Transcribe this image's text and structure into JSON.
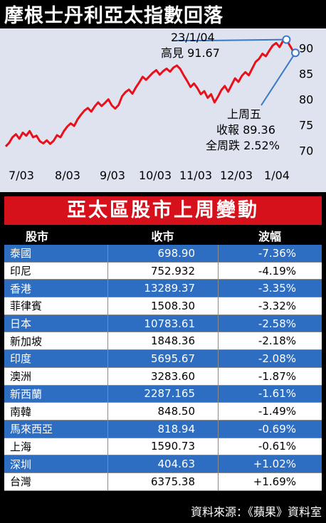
{
  "title": "摩根士丹利亞太指數回落",
  "chart_data": {
    "type": "line",
    "title": "摩根士丹利亞太指數回落",
    "x_tick_labels": [
      "7/03",
      "8/03",
      "9/03",
      "10/03",
      "11/03",
      "12/03",
      "1/04"
    ],
    "y_ticks": [
      70,
      75,
      80,
      85,
      90
    ],
    "ylim": [
      68,
      93
    ],
    "series": [
      {
        "color": "#e8101a",
        "values": [
          70.8,
          71.5,
          72.6,
          73.2,
          72.3,
          73.5,
          72.9,
          73.8,
          72.6,
          72.9,
          71.8,
          71.4,
          72.0,
          71.3,
          71.9,
          73.0,
          72.6,
          73.8,
          74.7,
          75.3,
          74.8,
          76.1,
          77.0,
          77.8,
          78.3,
          77.6,
          78.6,
          79.4,
          78.7,
          79.3,
          80.0,
          78.8,
          78.2,
          78.9,
          80.6,
          81.4,
          81.9,
          81.1,
          82.3,
          83.3,
          84.4,
          83.8,
          84.5,
          85.2,
          85.7,
          84.8,
          85.5,
          86.0,
          85.4,
          86.2,
          86.6,
          85.9,
          84.7,
          83.6,
          82.4,
          83.1,
          82.2,
          81.0,
          81.6,
          80.3,
          81.0,
          79.4,
          80.5,
          81.8,
          82.6,
          81.5,
          82.8,
          84.1,
          83.4,
          84.6,
          85.3,
          84.7,
          86.0,
          87.3,
          87.9,
          88.9,
          88.4,
          89.5,
          90.5,
          91.0,
          90.2,
          91.4,
          91.67,
          90.5,
          89.36
        ]
      }
    ],
    "annotations": [
      {
        "lines": [
          "23/1/04",
          "高見 91.67"
        ],
        "value": 91.67
      },
      {
        "lines": [
          "上周五",
          "收報 89.36",
          "全周跌 2.52%"
        ],
        "value": 89.36
      }
    ]
  },
  "table": {
    "banner": "亞太區股市上周變動",
    "headers": [
      "股市",
      "收市",
      "波幅"
    ],
    "rows": [
      {
        "market": "泰國",
        "close": "698.90",
        "change": "-7.36%"
      },
      {
        "market": "印尼",
        "close": "752.932",
        "change": "-4.19%"
      },
      {
        "market": "香港",
        "close": "13289.37",
        "change": "-3.35%"
      },
      {
        "market": "菲律賓",
        "close": "1508.30",
        "change": "-3.32%"
      },
      {
        "market": "日本",
        "close": "10783.61",
        "change": "-2.58%"
      },
      {
        "market": "新加坡",
        "close": "1848.36",
        "change": "-2.18%"
      },
      {
        "market": "印度",
        "close": "5695.67",
        "change": "-2.08%"
      },
      {
        "market": "澳洲",
        "close": "3283.60",
        "change": "-1.87%"
      },
      {
        "market": "新西蘭",
        "close": "2287.165",
        "change": "-1.61%"
      },
      {
        "market": "南韓",
        "close": "848.50",
        "change": "-1.49%"
      },
      {
        "market": "馬來西亞",
        "close": "818.94",
        "change": "-0.69%"
      },
      {
        "market": "上海",
        "close": "1590.73",
        "change": "-0.61%"
      },
      {
        "market": "深圳",
        "close": "404.63",
        "change": "+1.02%"
      },
      {
        "market": "台灣",
        "close": "6375.38",
        "change": "+1.69%"
      }
    ]
  },
  "source": "資料來源：《蘋果》資料室",
  "colors": {
    "background": "#000000",
    "chart_panel": "#dfe3ef",
    "line": "#e8101a",
    "banner": "#d6111c",
    "row_blue": "#2e6ec2",
    "row_white": "#ffffff",
    "marker_blue": "#3a78c8"
  }
}
